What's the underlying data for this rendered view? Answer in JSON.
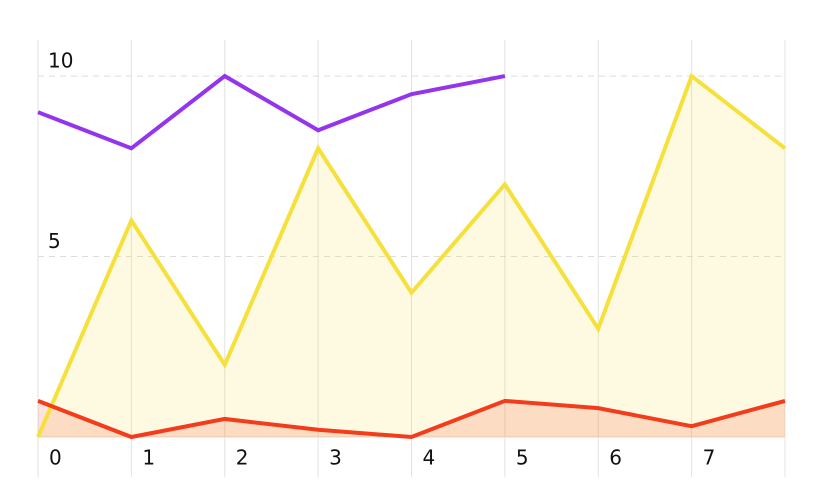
{
  "chart_data": {
    "type": "line",
    "x": [
      0,
      1,
      2,
      3,
      4,
      5,
      6,
      7,
      8
    ],
    "xlim": [
      0,
      8
    ],
    "xticks": [
      0,
      1,
      2,
      3,
      4,
      5,
      6,
      7
    ],
    "ylim": [
      0,
      11
    ],
    "yticks": [
      5,
      10
    ],
    "grid": true,
    "series": [
      {
        "color": "#f5e03c",
        "area": true,
        "values": [
          0,
          6,
          2,
          8,
          4,
          7,
          3,
          10,
          8
        ]
      },
      {
        "color": "#f23c1c",
        "area": true,
        "values": [
          1,
          0,
          0.5,
          0.2,
          0,
          1,
          0.8,
          0.3,
          1
        ]
      },
      {
        "color": "#9434ec",
        "area": false,
        "values": [
          9,
          8,
          10,
          8.5,
          9.5,
          10,
          null,
          null,
          null
        ]
      }
    ]
  }
}
